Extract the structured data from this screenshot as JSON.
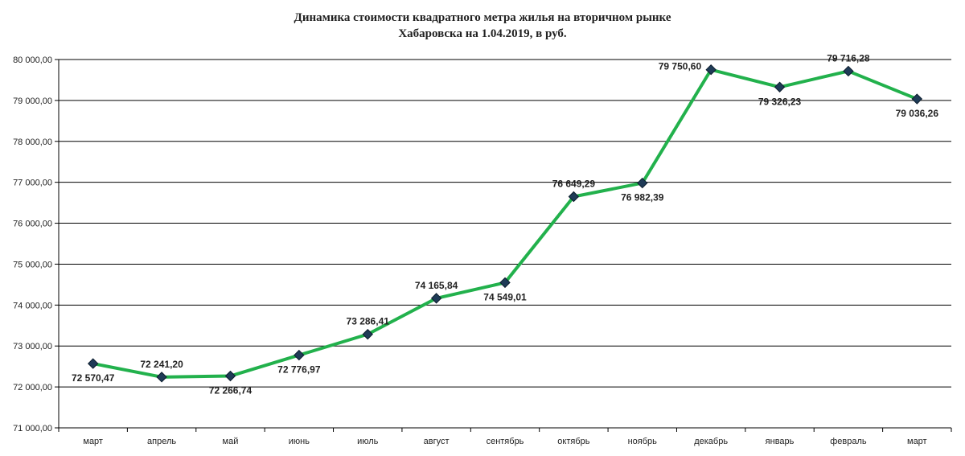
{
  "chart_data": {
    "type": "line",
    "title_lines": [
      "Динамика стоимости квадратного метра жилья на вторичном рынке",
      "Хабаровска на 1.04.2019, в руб."
    ],
    "xlabel": "",
    "ylabel": "",
    "ylim": [
      71000,
      80000
    ],
    "y_ticks": [
      71000,
      72000,
      73000,
      74000,
      75000,
      76000,
      77000,
      78000,
      79000,
      80000
    ],
    "y_tick_labels": [
      "71 000,00",
      "72 000,00",
      "73 000,00",
      "74 000,00",
      "75 000,00",
      "76 000,00",
      "77 000,00",
      "78 000,00",
      "79 000,00",
      "80 000,00"
    ],
    "grid": true,
    "legend": "none",
    "categories": [
      "март",
      "апрель",
      "май",
      "июнь",
      "июль",
      "август",
      "сентябрь",
      "октябрь",
      "ноябрь",
      "декабрь",
      "январь",
      "февраль",
      "март"
    ],
    "series": [
      {
        "values": [
          72570.47,
          72241.2,
          72266.74,
          72776.97,
          73286.41,
          74165.84,
          74549.01,
          76649.29,
          76982.39,
          79750.6,
          79326.23,
          79716.28,
          79036.26
        ],
        "labels": [
          "72 570,47",
          "72 241,20",
          "72 266,74",
          "72 776,97",
          "73 286,41",
          "74 165,84",
          "74 549,01",
          "76 649,29",
          "76 982,39",
          "79 750,60",
          "79 326,23",
          "79 716,28",
          "79 036,26"
        ],
        "label_position": [
          "below",
          "above",
          "below",
          "below",
          "above",
          "above",
          "below",
          "above",
          "below",
          "left",
          "below",
          "above",
          "below"
        ]
      }
    ],
    "colors": {
      "line": "#22b14c",
      "marker": "#1f3b57",
      "grid": "#000000",
      "text": "#222222"
    }
  }
}
